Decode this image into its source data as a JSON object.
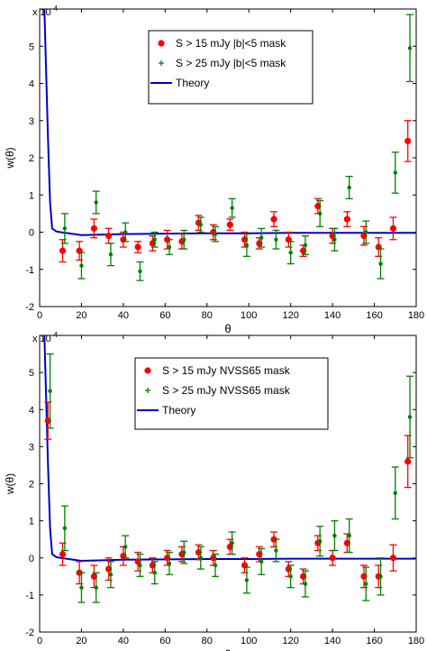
{
  "chart_data": [
    {
      "type": "scatter",
      "xlabel": "θ",
      "ylabel": "w(θ)",
      "exponent_label": "x 10",
      "exponent_power": "-4",
      "xlim": [
        0,
        180
      ],
      "ylim": [
        -2,
        6
      ],
      "xticks": [
        "0",
        "20",
        "40",
        "60",
        "80",
        "100",
        "120",
        "140",
        "160",
        "180"
      ],
      "yticks": [
        "-2",
        "-1",
        "0",
        "1",
        "2",
        "3",
        "4",
        "5"
      ],
      "grid": false,
      "legend_position": "top-center",
      "legend": [
        {
          "label": "S > 15 mJy |b|<5 mask",
          "color": "#ff0000",
          "marker": "dot"
        },
        {
          "label": "S > 25 mJy |b|<5 mask",
          "color": "#008000",
          "marker": "plus"
        },
        {
          "label": "Theory",
          "color": "#0000cc",
          "marker": "line"
        }
      ],
      "series": [
        {
          "name": "S > 15 mJy |b|<5 mask",
          "color": "#ff0000",
          "points": [
            {
              "x": 11,
              "y": -0.5,
              "err": 0.3
            },
            {
              "x": 19,
              "y": -0.5,
              "err": 0.25
            },
            {
              "x": 26,
              "y": 0.1,
              "err": 0.25
            },
            {
              "x": 33,
              "y": -0.1,
              "err": 0.2
            },
            {
              "x": 40,
              "y": -0.2,
              "err": 0.2
            },
            {
              "x": 47,
              "y": -0.4,
              "err": 0.15
            },
            {
              "x": 54,
              "y": -0.3,
              "err": 0.2
            },
            {
              "x": 61,
              "y": -0.2,
              "err": 0.25
            },
            {
              "x": 68,
              "y": -0.25,
              "err": 0.2
            },
            {
              "x": 76,
              "y": 0.25,
              "err": 0.2
            },
            {
              "x": 83,
              "y": 0.0,
              "err": 0.2
            },
            {
              "x": 91,
              "y": 0.2,
              "err": 0.15
            },
            {
              "x": 98,
              "y": -0.2,
              "err": 0.2
            },
            {
              "x": 105,
              "y": -0.3,
              "err": 0.15
            },
            {
              "x": 112,
              "y": 0.35,
              "err": 0.2
            },
            {
              "x": 119,
              "y": -0.2,
              "err": 0.2
            },
            {
              "x": 126,
              "y": -0.5,
              "err": 0.15
            },
            {
              "x": 133,
              "y": 0.7,
              "err": 0.2
            },
            {
              "x": 140,
              "y": -0.1,
              "err": 0.2
            },
            {
              "x": 147,
              "y": 0.35,
              "err": 0.2
            },
            {
              "x": 155,
              "y": -0.1,
              "err": 0.25
            },
            {
              "x": 162,
              "y": -0.4,
              "err": 0.25
            },
            {
              "x": 169,
              "y": 0.1,
              "err": 0.3
            },
            {
              "x": 176,
              "y": 2.45,
              "err": 0.55
            }
          ]
        },
        {
          "name": "S > 25 mJy |b|<5 mask",
          "color": "#008000",
          "points": [
            {
              "x": 12,
              "y": 0.1,
              "err": 0.4
            },
            {
              "x": 20,
              "y": -0.9,
              "err": 0.35
            },
            {
              "x": 27,
              "y": 0.8,
              "err": 0.3
            },
            {
              "x": 34,
              "y": -0.6,
              "err": 0.3
            },
            {
              "x": 41,
              "y": 0.0,
              "err": 0.25
            },
            {
              "x": 48,
              "y": -1.05,
              "err": 0.25
            },
            {
              "x": 55,
              "y": -0.2,
              "err": 0.2
            },
            {
              "x": 62,
              "y": -0.4,
              "err": 0.2
            },
            {
              "x": 69,
              "y": -0.2,
              "err": 0.25
            },
            {
              "x": 77,
              "y": 0.2,
              "err": 0.2
            },
            {
              "x": 84,
              "y": -0.05,
              "err": 0.2
            },
            {
              "x": 92,
              "y": 0.65,
              "err": 0.25
            },
            {
              "x": 99,
              "y": -0.35,
              "err": 0.3
            },
            {
              "x": 106,
              "y": -0.15,
              "err": 0.25
            },
            {
              "x": 113,
              "y": -0.2,
              "err": 0.25
            },
            {
              "x": 120,
              "y": -0.55,
              "err": 0.3
            },
            {
              "x": 127,
              "y": -0.35,
              "err": 0.25
            },
            {
              "x": 134,
              "y": 0.5,
              "err": 0.35
            },
            {
              "x": 141,
              "y": -0.2,
              "err": 0.3
            },
            {
              "x": 148,
              "y": 1.2,
              "err": 0.3
            },
            {
              "x": 156,
              "y": 0.0,
              "err": 0.3
            },
            {
              "x": 163,
              "y": -0.85,
              "err": 0.4
            },
            {
              "x": 170,
              "y": 1.6,
              "err": 0.55
            },
            {
              "x": 177,
              "y": 4.95,
              "err": 0.9
            }
          ]
        }
      ],
      "theory": {
        "name": "Theory",
        "color": "#0000cc",
        "x": [
          2.3,
          3,
          4,
          5,
          6,
          8,
          10,
          20,
          40,
          60,
          80,
          100,
          120,
          140,
          160,
          170,
          180
        ],
        "y": [
          6.0,
          4.5,
          2.5,
          0.8,
          0.1,
          0.02,
          0.0,
          -0.08,
          -0.05,
          -0.04,
          -0.03,
          -0.03,
          -0.02,
          -0.02,
          -0.02,
          -0.02,
          -0.02
        ]
      }
    },
    {
      "type": "scatter",
      "xlabel": "θ",
      "ylabel": "w(θ)",
      "exponent_label": "x 10",
      "exponent_power": "-4",
      "xlim": [
        0,
        180
      ],
      "ylim": [
        -2,
        6
      ],
      "xticks": [
        "0",
        "20",
        "40",
        "60",
        "80",
        "100",
        "120",
        "140",
        "160",
        "180"
      ],
      "yticks": [
        "-2",
        "-1",
        "0",
        "1",
        "2",
        "3",
        "4",
        "5"
      ],
      "grid": false,
      "legend_position": "top-center",
      "legend": [
        {
          "label": "S > 15 mJy NVSS65 mask",
          "color": "#ff0000",
          "marker": "dot"
        },
        {
          "label": "S > 25 mJy NVSS65 mask",
          "color": "#008000",
          "marker": "plus"
        },
        {
          "label": "Theory",
          "color": "#0000cc",
          "marker": "line"
        }
      ],
      "series": [
        {
          "name": "S > 15 mJy NVSS65 mask",
          "color": "#ff0000",
          "points": [
            {
              "x": 4,
              "y": 3.7,
              "err": 0.5
            },
            {
              "x": 11,
              "y": 0.1,
              "err": 0.3
            },
            {
              "x": 19,
              "y": -0.4,
              "err": 0.3
            },
            {
              "x": 26,
              "y": -0.5,
              "err": 0.3
            },
            {
              "x": 33,
              "y": -0.3,
              "err": 0.3
            },
            {
              "x": 40,
              "y": 0.05,
              "err": 0.25
            },
            {
              "x": 47,
              "y": -0.1,
              "err": 0.25
            },
            {
              "x": 54,
              "y": -0.2,
              "err": 0.2
            },
            {
              "x": 61,
              "y": 0.0,
              "err": 0.2
            },
            {
              "x": 68,
              "y": 0.1,
              "err": 0.2
            },
            {
              "x": 76,
              "y": 0.15,
              "err": 0.2
            },
            {
              "x": 83,
              "y": 0.0,
              "err": 0.2
            },
            {
              "x": 91,
              "y": 0.3,
              "err": 0.2
            },
            {
              "x": 98,
              "y": -0.2,
              "err": 0.2
            },
            {
              "x": 105,
              "y": 0.1,
              "err": 0.2
            },
            {
              "x": 112,
              "y": 0.5,
              "err": 0.2
            },
            {
              "x": 119,
              "y": -0.3,
              "err": 0.2
            },
            {
              "x": 126,
              "y": -0.5,
              "err": 0.2
            },
            {
              "x": 133,
              "y": 0.4,
              "err": 0.2
            },
            {
              "x": 140,
              "y": 0.0,
              "err": 0.2
            },
            {
              "x": 147,
              "y": 0.4,
              "err": 0.25
            },
            {
              "x": 155,
              "y": -0.5,
              "err": 0.3
            },
            {
              "x": 162,
              "y": -0.5,
              "err": 0.3
            },
            {
              "x": 169,
              "y": 0.0,
              "err": 0.35
            },
            {
              "x": 176,
              "y": 2.6,
              "err": 0.7
            }
          ]
        },
        {
          "name": "S > 25 mJy NVSS65 mask",
          "color": "#008000",
          "points": [
            {
              "x": 5,
              "y": 4.5,
              "err": 1.0
            },
            {
              "x": 12,
              "y": 0.8,
              "err": 0.6
            },
            {
              "x": 20,
              "y": -0.8,
              "err": 0.4
            },
            {
              "x": 27,
              "y": -0.8,
              "err": 0.4
            },
            {
              "x": 34,
              "y": -0.45,
              "err": 0.35
            },
            {
              "x": 41,
              "y": 0.3,
              "err": 0.3
            },
            {
              "x": 48,
              "y": -0.2,
              "err": 0.3
            },
            {
              "x": 55,
              "y": -0.4,
              "err": 0.3
            },
            {
              "x": 62,
              "y": -0.15,
              "err": 0.3
            },
            {
              "x": 69,
              "y": 0.15,
              "err": 0.3
            },
            {
              "x": 77,
              "y": 0.0,
              "err": 0.3
            },
            {
              "x": 84,
              "y": -0.2,
              "err": 0.3
            },
            {
              "x": 92,
              "y": 0.4,
              "err": 0.3
            },
            {
              "x": 99,
              "y": -0.6,
              "err": 0.35
            },
            {
              "x": 106,
              "y": -0.1,
              "err": 0.35
            },
            {
              "x": 113,
              "y": 0.2,
              "err": 0.3
            },
            {
              "x": 120,
              "y": -0.5,
              "err": 0.3
            },
            {
              "x": 127,
              "y": -0.7,
              "err": 0.35
            },
            {
              "x": 134,
              "y": 0.45,
              "err": 0.4
            },
            {
              "x": 141,
              "y": 0.6,
              "err": 0.4
            },
            {
              "x": 148,
              "y": 0.6,
              "err": 0.45
            },
            {
              "x": 156,
              "y": -0.7,
              "err": 0.45
            },
            {
              "x": 163,
              "y": -0.5,
              "err": 0.5
            },
            {
              "x": 170,
              "y": 1.75,
              "err": 0.7
            },
            {
              "x": 177,
              "y": 3.8,
              "err": 1.1
            }
          ]
        }
      ],
      "theory": {
        "name": "Theory",
        "color": "#0000cc",
        "x": [
          2.3,
          3,
          4,
          5,
          6,
          8,
          10,
          20,
          40,
          60,
          80,
          100,
          120,
          140,
          160,
          170,
          180
        ],
        "y": [
          6.0,
          4.5,
          2.5,
          0.8,
          0.1,
          0.02,
          0.0,
          -0.08,
          -0.05,
          -0.04,
          -0.03,
          -0.03,
          -0.02,
          -0.02,
          -0.02,
          -0.02,
          -0.02
        ]
      }
    }
  ]
}
